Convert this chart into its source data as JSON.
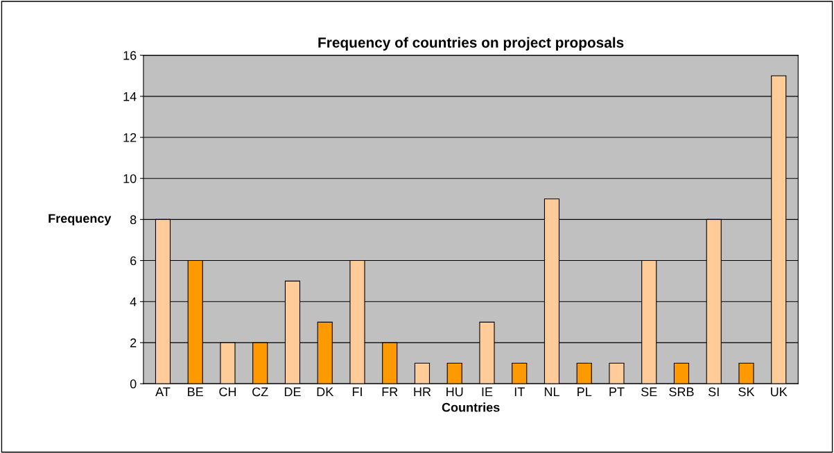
{
  "chart_data": {
    "type": "bar",
    "title": "Frequency of countries on project proposals",
    "xlabel": "Countries",
    "ylabel": "Frequency",
    "categories": [
      "AT",
      "BE",
      "CH",
      "CZ",
      "DE",
      "DK",
      "FI",
      "FR",
      "HR",
      "HU",
      "IE",
      "IT",
      "NL",
      "PL",
      "PT",
      "SE",
      "SRB",
      "SI",
      "SK",
      "UK"
    ],
    "values": [
      8,
      6,
      2,
      2,
      5,
      3,
      6,
      2,
      1,
      1,
      3,
      1,
      9,
      1,
      1,
      6,
      1,
      8,
      1,
      15
    ],
    "colors": [
      "#ffcc99",
      "#ff9900",
      "#ffcc99",
      "#ff9900",
      "#ffcc99",
      "#ff9900",
      "#ffcc99",
      "#ff9900",
      "#ffcc99",
      "#ff9900",
      "#ffcc99",
      "#ff9900",
      "#ffcc99",
      "#ff9900",
      "#ffcc99",
      "#ffcc99",
      "#ff9900",
      "#ffcc99",
      "#ff9900",
      "#ffcc99"
    ],
    "ylim": [
      0,
      16
    ],
    "yticks": [
      0,
      2,
      4,
      6,
      8,
      10,
      12,
      14,
      16
    ],
    "grid": "y"
  }
}
